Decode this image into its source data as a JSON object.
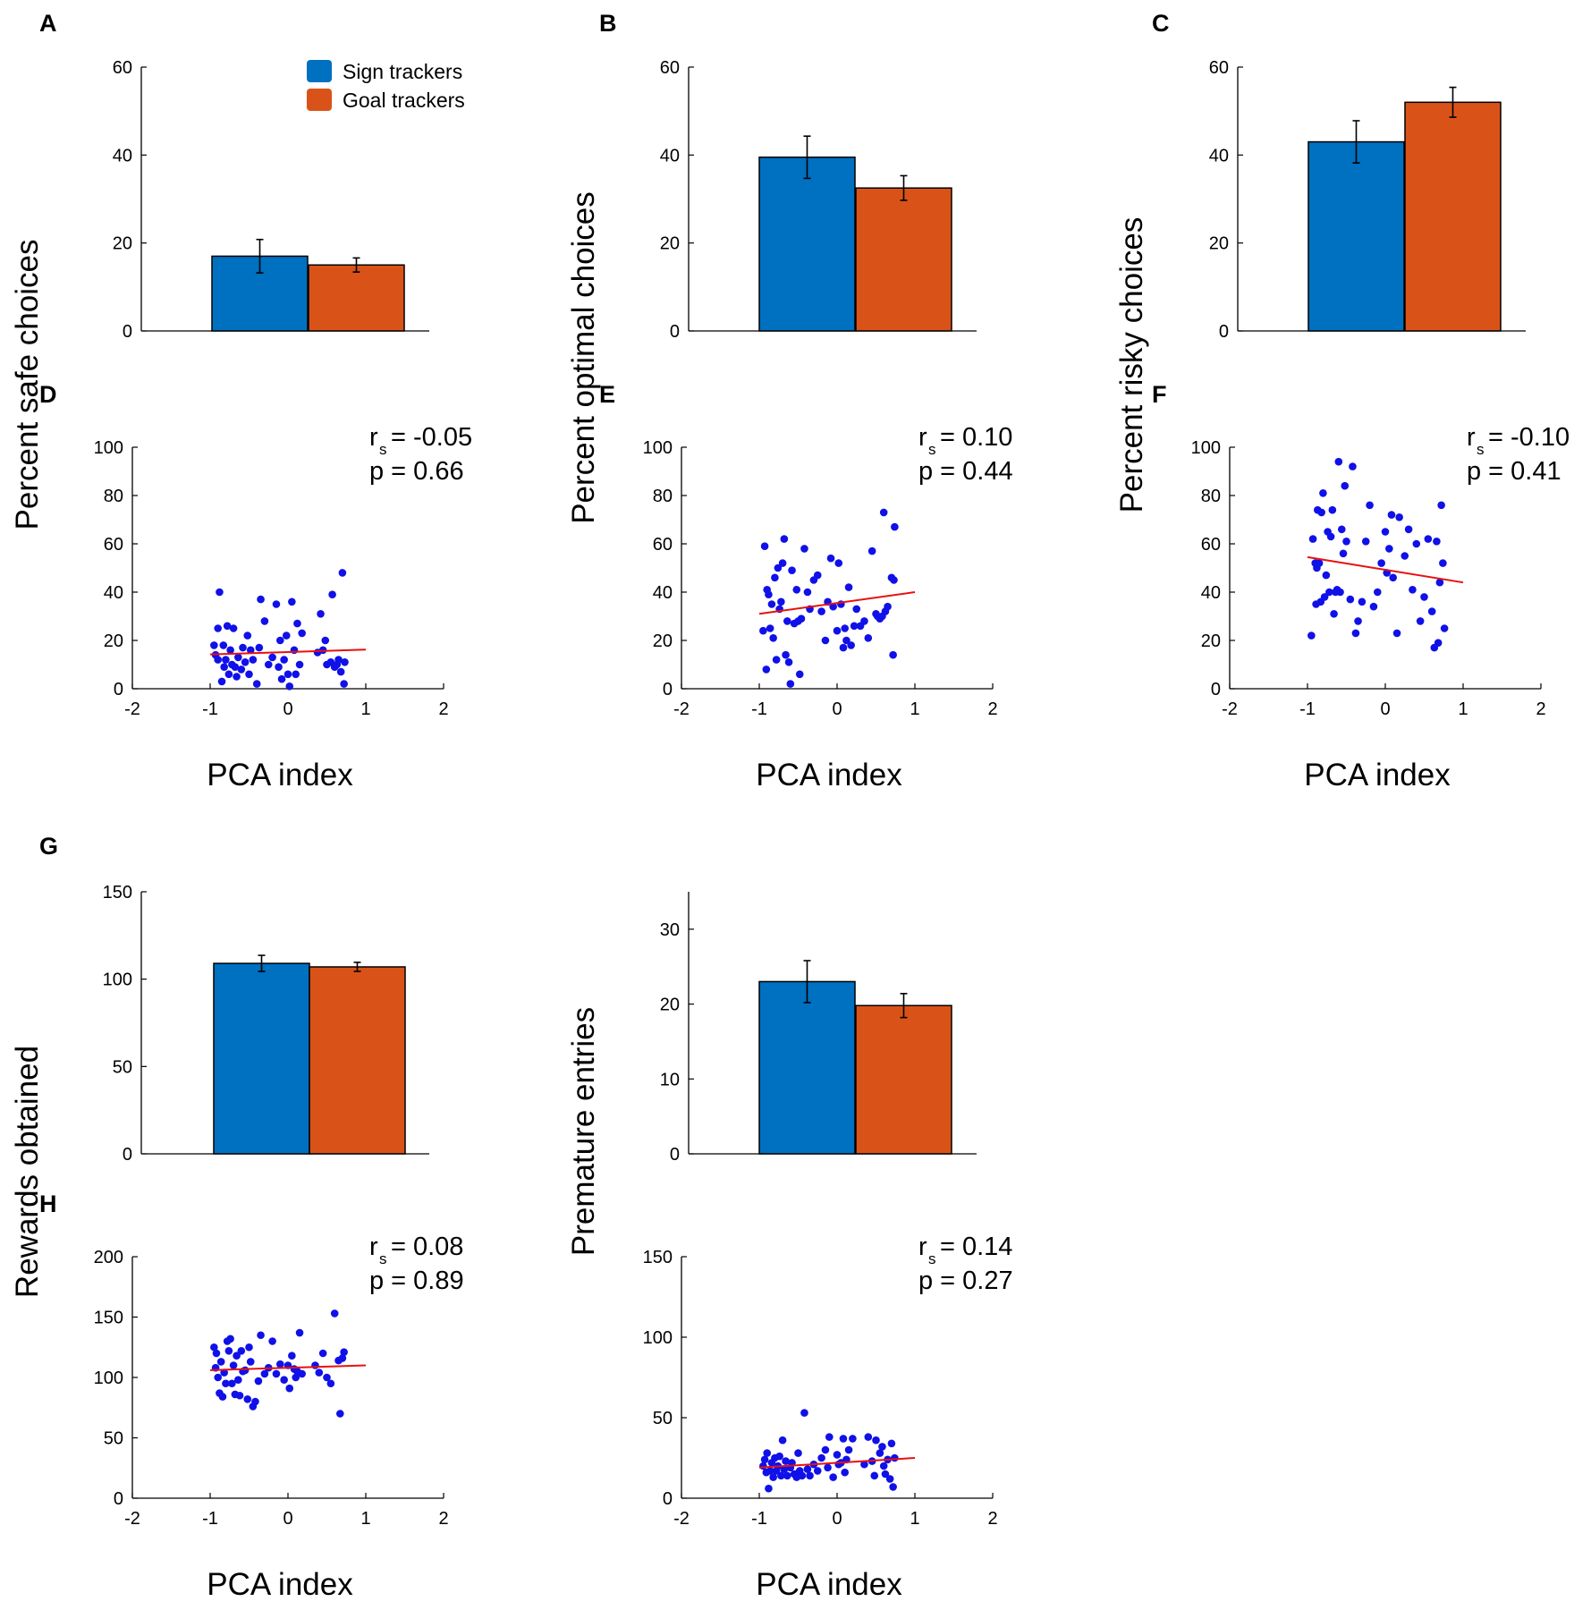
{
  "colors": {
    "sign": "#0070c0",
    "goal": "#d95319",
    "points": "#1010e8",
    "fit": "#e81010"
  },
  "legend": {
    "sign": "Sign trackers",
    "goal": "Goal trackers"
  },
  "chart_data": [
    {
      "id": "A",
      "letter": "A",
      "type": "bar",
      "ylabel": "Percent safe choices",
      "ylim": [
        0,
        60
      ],
      "yticks": [
        "0",
        "20",
        "40",
        "60"
      ],
      "categories": [
        "Sign trackers",
        "Goal trackers"
      ],
      "values": [
        17,
        15
      ],
      "errors": [
        3.8,
        1.6
      ]
    },
    {
      "id": "B",
      "letter": "B",
      "type": "bar",
      "ylabel": "Percent optimal choices",
      "ylim": [
        0,
        60
      ],
      "yticks": [
        "0",
        "20",
        "40",
        "60"
      ],
      "categories": [
        "Sign trackers",
        "Goal trackers"
      ],
      "values": [
        39.5,
        32.5
      ],
      "errors": [
        4.8,
        2.8
      ]
    },
    {
      "id": "C",
      "letter": "C",
      "type": "bar",
      "ylabel": "Percent risky choices",
      "ylim": [
        0,
        60
      ],
      "yticks": [
        "0",
        "20",
        "40",
        "60"
      ],
      "categories": [
        "Sign trackers",
        "Goal trackers"
      ],
      "values": [
        43,
        52
      ],
      "errors": [
        4.8,
        3.4
      ]
    },
    {
      "id": "D",
      "letter": "D",
      "type": "scatter",
      "xlabel": "PCA index",
      "xlim": [
        -2,
        2
      ],
      "xticks": [
        "-2",
        "-1",
        "0",
        "1",
        "2"
      ],
      "ylim": [
        0,
        100
      ],
      "yticks": [
        "0",
        "20",
        "40",
        "60",
        "80",
        "100"
      ],
      "stat_r": "= -0.05",
      "stat_p": "p = 0.66",
      "fit": [
        [
          -1,
          14.2
        ],
        [
          1,
          16.2
        ]
      ],
      "points": [
        [
          -0.95,
          18
        ],
        [
          -0.93,
          14
        ],
        [
          -0.9,
          12
        ],
        [
          -0.9,
          25
        ],
        [
          -0.88,
          40
        ],
        [
          -0.85,
          3
        ],
        [
          -0.83,
          18
        ],
        [
          -0.82,
          9
        ],
        [
          -0.8,
          12
        ],
        [
          -0.78,
          26
        ],
        [
          -0.76,
          6
        ],
        [
          -0.74,
          16
        ],
        [
          -0.72,
          10
        ],
        [
          -0.7,
          25
        ],
        [
          -0.68,
          9
        ],
        [
          -0.66,
          5
        ],
        [
          -0.64,
          13
        ],
        [
          -0.6,
          8
        ],
        [
          -0.58,
          17
        ],
        [
          -0.55,
          11
        ],
        [
          -0.52,
          22
        ],
        [
          -0.5,
          6
        ],
        [
          -0.48,
          16
        ],
        [
          -0.45,
          12
        ],
        [
          -0.4,
          2
        ],
        [
          -0.37,
          17
        ],
        [
          -0.35,
          37
        ],
        [
          -0.3,
          28
        ],
        [
          -0.25,
          10
        ],
        [
          -0.2,
          13
        ],
        [
          -0.15,
          35
        ],
        [
          -0.12,
          9
        ],
        [
          -0.1,
          20
        ],
        [
          -0.08,
          4
        ],
        [
          -0.05,
          12
        ],
        [
          -0.02,
          22
        ],
        [
          0,
          6
        ],
        [
          0.02,
          1
        ],
        [
          0.05,
          36
        ],
        [
          0.08,
          16
        ],
        [
          0.1,
          6
        ],
        [
          0.12,
          27
        ],
        [
          0.15,
          10
        ],
        [
          0.18,
          23
        ],
        [
          0.38,
          15
        ],
        [
          0.42,
          31
        ],
        [
          0.45,
          16
        ],
        [
          0.48,
          20
        ],
        [
          0.5,
          10
        ],
        [
          0.55,
          11
        ],
        [
          0.57,
          39
        ],
        [
          0.6,
          9
        ],
        [
          0.63,
          10
        ],
        [
          0.65,
          12
        ],
        [
          0.68,
          7
        ],
        [
          0.7,
          48
        ],
        [
          0.72,
          2
        ],
        [
          0.73,
          11
        ]
      ]
    },
    {
      "id": "E",
      "letter": "E",
      "type": "scatter",
      "xlabel": "PCA index",
      "xlim": [
        -2,
        2
      ],
      "xticks": [
        "-2",
        "-1",
        "0",
        "1",
        "2"
      ],
      "ylim": [
        0,
        100
      ],
      "yticks": [
        "0",
        "20",
        "40",
        "60",
        "80",
        "100"
      ],
      "stat_r": "= 0.10",
      "stat_p": "p = 0.44",
      "fit": [
        [
          -1,
          31
        ],
        [
          1,
          40
        ]
      ],
      "points": [
        [
          -0.95,
          24
        ],
        [
          -0.93,
          59
        ],
        [
          -0.91,
          8
        ],
        [
          -0.9,
          41
        ],
        [
          -0.88,
          39
        ],
        [
          -0.86,
          25
        ],
        [
          -0.84,
          35
        ],
        [
          -0.82,
          21
        ],
        [
          -0.8,
          46
        ],
        [
          -0.78,
          12
        ],
        [
          -0.76,
          50
        ],
        [
          -0.74,
          33
        ],
        [
          -0.72,
          36
        ],
        [
          -0.7,
          52
        ],
        [
          -0.68,
          62
        ],
        [
          -0.66,
          14
        ],
        [
          -0.64,
          28
        ],
        [
          -0.62,
          11
        ],
        [
          -0.6,
          2
        ],
        [
          -0.58,
          49
        ],
        [
          -0.55,
          27
        ],
        [
          -0.52,
          41
        ],
        [
          -0.5,
          28
        ],
        [
          -0.48,
          6
        ],
        [
          -0.46,
          29
        ],
        [
          -0.42,
          58
        ],
        [
          -0.38,
          40
        ],
        [
          -0.35,
          33
        ],
        [
          -0.3,
          45
        ],
        [
          -0.25,
          47
        ],
        [
          -0.2,
          32
        ],
        [
          -0.15,
          20
        ],
        [
          -0.12,
          36
        ],
        [
          -0.08,
          54
        ],
        [
          -0.05,
          34
        ],
        [
          0,
          24
        ],
        [
          0.02,
          52
        ],
        [
          0.05,
          35
        ],
        [
          0.08,
          17
        ],
        [
          0.1,
          25
        ],
        [
          0.12,
          20
        ],
        [
          0.15,
          42
        ],
        [
          0.18,
          18
        ],
        [
          0.22,
          26
        ],
        [
          0.25,
          33
        ],
        [
          0.3,
          26
        ],
        [
          0.35,
          28
        ],
        [
          0.4,
          21
        ],
        [
          0.45,
          57
        ],
        [
          0.5,
          31
        ],
        [
          0.52,
          30
        ],
        [
          0.55,
          29
        ],
        [
          0.58,
          30
        ],
        [
          0.6,
          73
        ],
        [
          0.62,
          32
        ],
        [
          0.65,
          34
        ],
        [
          0.7,
          46
        ],
        [
          0.72,
          14
        ],
        [
          0.73,
          45
        ],
        [
          0.74,
          67
        ]
      ]
    },
    {
      "id": "F",
      "letter": "F",
      "type": "scatter",
      "xlabel": "PCA index",
      "xlim": [
        -2,
        2
      ],
      "xticks": [
        "-2",
        "-1",
        "0",
        "1",
        "2"
      ],
      "ylim": [
        0,
        100
      ],
      "yticks": [
        "0",
        "20",
        "40",
        "60",
        "80",
        "100"
      ],
      "stat_r": "= -0.10",
      "stat_p": "p = 0.41",
      "fit": [
        [
          -1,
          54.5
        ],
        [
          1,
          44
        ]
      ],
      "points": [
        [
          -0.95,
          22
        ],
        [
          -0.93,
          62
        ],
        [
          -0.9,
          52
        ],
        [
          -0.89,
          35
        ],
        [
          -0.88,
          50
        ],
        [
          -0.87,
          74
        ],
        [
          -0.85,
          52
        ],
        [
          -0.83,
          36
        ],
        [
          -0.82,
          73
        ],
        [
          -0.8,
          81
        ],
        [
          -0.78,
          38
        ],
        [
          -0.76,
          47
        ],
        [
          -0.74,
          65
        ],
        [
          -0.72,
          40
        ],
        [
          -0.7,
          63
        ],
        [
          -0.68,
          74
        ],
        [
          -0.66,
          31
        ],
        [
          -0.64,
          40
        ],
        [
          -0.62,
          41
        ],
        [
          -0.6,
          94
        ],
        [
          -0.58,
          40
        ],
        [
          -0.56,
          66
        ],
        [
          -0.54,
          56
        ],
        [
          -0.52,
          84
        ],
        [
          -0.5,
          61
        ],
        [
          -0.45,
          37
        ],
        [
          -0.42,
          92
        ],
        [
          -0.38,
          23
        ],
        [
          -0.35,
          28
        ],
        [
          -0.3,
          36
        ],
        [
          -0.25,
          61
        ],
        [
          -0.2,
          76
        ],
        [
          -0.15,
          34
        ],
        [
          -0.1,
          40
        ],
        [
          -0.05,
          52
        ],
        [
          0,
          65
        ],
        [
          0.02,
          48
        ],
        [
          0.05,
          58
        ],
        [
          0.08,
          72
        ],
        [
          0.1,
          46
        ],
        [
          0.15,
          23
        ],
        [
          0.18,
          71
        ],
        [
          0.25,
          55
        ],
        [
          0.3,
          66
        ],
        [
          0.35,
          41
        ],
        [
          0.4,
          60
        ],
        [
          0.45,
          28
        ],
        [
          0.5,
          38
        ],
        [
          0.55,
          62
        ],
        [
          0.6,
          32
        ],
        [
          0.63,
          17
        ],
        [
          0.66,
          61
        ],
        [
          0.68,
          19
        ],
        [
          0.7,
          44
        ],
        [
          0.72,
          76
        ],
        [
          0.74,
          52
        ],
        [
          0.76,
          25
        ]
      ]
    },
    {
      "id": "G",
      "letter": "G",
      "type": "bar",
      "ylabel": "Rewards obtained",
      "ylim": [
        0,
        150
      ],
      "yticks": [
        "0",
        "50",
        "100",
        "150"
      ],
      "categories": [
        "Sign trackers",
        "Goal trackers"
      ],
      "values": [
        109,
        107
      ],
      "errors": [
        4.6,
        2.6
      ]
    },
    {
      "id": "G2",
      "letter": "",
      "type": "bar",
      "ylabel": "Premature entries",
      "ylim": [
        0,
        35
      ],
      "yticks": [
        "0",
        "10",
        "20",
        "30"
      ],
      "categories": [
        "Sign trackers",
        "Goal trackers"
      ],
      "values": [
        23,
        19.8
      ],
      "errors": [
        2.8,
        1.6
      ]
    },
    {
      "id": "H",
      "letter": "H",
      "type": "scatter",
      "xlabel": "PCA index",
      "xlim": [
        -2,
        2
      ],
      "xticks": [
        "-2",
        "-1",
        "0",
        "1",
        "2"
      ],
      "ylim": [
        0,
        200
      ],
      "yticks": [
        "0",
        "50",
        "100",
        "150",
        "200"
      ],
      "stat_r": "= 0.08",
      "stat_p": "p = 0.89",
      "fit": [
        [
          -1,
          106
        ],
        [
          1,
          110
        ]
      ],
      "points": [
        [
          -0.95,
          125
        ],
        [
          -0.93,
          108
        ],
        [
          -0.92,
          120
        ],
        [
          -0.9,
          100
        ],
        [
          -0.88,
          87
        ],
        [
          -0.86,
          113
        ],
        [
          -0.84,
          84
        ],
        [
          -0.82,
          104
        ],
        [
          -0.8,
          95
        ],
        [
          -0.78,
          130
        ],
        [
          -0.76,
          122
        ],
        [
          -0.74,
          132
        ],
        [
          -0.72,
          95
        ],
        [
          -0.7,
          110
        ],
        [
          -0.68,
          86
        ],
        [
          -0.66,
          118
        ],
        [
          -0.64,
          98
        ],
        [
          -0.62,
          85
        ],
        [
          -0.6,
          122
        ],
        [
          -0.58,
          105
        ],
        [
          -0.55,
          106
        ],
        [
          -0.52,
          82
        ],
        [
          -0.5,
          125
        ],
        [
          -0.48,
          113
        ],
        [
          -0.45,
          76
        ],
        [
          -0.42,
          80
        ],
        [
          -0.38,
          97
        ],
        [
          -0.35,
          135
        ],
        [
          -0.3,
          103
        ],
        [
          -0.25,
          108
        ],
        [
          -0.2,
          130
        ],
        [
          -0.15,
          103
        ],
        [
          -0.1,
          111
        ],
        [
          -0.05,
          98
        ],
        [
          0,
          110
        ],
        [
          0.02,
          91
        ],
        [
          0.05,
          118
        ],
        [
          0.08,
          107
        ],
        [
          0.1,
          100
        ],
        [
          0.12,
          105
        ],
        [
          0.15,
          137
        ],
        [
          0.18,
          103
        ],
        [
          0.35,
          110
        ],
        [
          0.4,
          104
        ],
        [
          0.45,
          120
        ],
        [
          0.5,
          100
        ],
        [
          0.55,
          95
        ],
        [
          0.6,
          153
        ],
        [
          0.65,
          114
        ],
        [
          0.67,
          70
        ],
        [
          0.7,
          116
        ],
        [
          0.72,
          121
        ]
      ]
    },
    {
      "id": "I",
      "letter": "",
      "type": "scatter",
      "xlabel": "PCA index",
      "xlim": [
        -2,
        2
      ],
      "xticks": [
        "-2",
        "-1",
        "0",
        "1",
        "2"
      ],
      "ylim": [
        0,
        150
      ],
      "yticks": [
        "0",
        "50",
        "100",
        "150"
      ],
      "stat_r": "= 0.14",
      "stat_p": "p = 0.27",
      "fit": [
        [
          -1,
          19
        ],
        [
          1,
          25
        ]
      ],
      "points": [
        [
          -0.95,
          20
        ],
        [
          -0.93,
          24
        ],
        [
          -0.91,
          16
        ],
        [
          -0.9,
          28
        ],
        [
          -0.88,
          6
        ],
        [
          -0.86,
          17
        ],
        [
          -0.84,
          22
        ],
        [
          -0.82,
          13
        ],
        [
          -0.8,
          25
        ],
        [
          -0.78,
          17
        ],
        [
          -0.76,
          20
        ],
        [
          -0.74,
          26
        ],
        [
          -0.72,
          14
        ],
        [
          -0.7,
          36
        ],
        [
          -0.68,
          18
        ],
        [
          -0.66,
          23
        ],
        [
          -0.64,
          14
        ],
        [
          -0.6,
          19
        ],
        [
          -0.58,
          22
        ],
        [
          -0.55,
          15
        ],
        [
          -0.52,
          13
        ],
        [
          -0.5,
          28
        ],
        [
          -0.48,
          17
        ],
        [
          -0.45,
          14
        ],
        [
          -0.42,
          53
        ],
        [
          -0.38,
          18
        ],
        [
          -0.35,
          14
        ],
        [
          -0.3,
          21
        ],
        [
          -0.25,
          17
        ],
        [
          -0.2,
          25
        ],
        [
          -0.15,
          30
        ],
        [
          -0.12,
          19
        ],
        [
          -0.1,
          38
        ],
        [
          -0.05,
          13
        ],
        [
          0,
          27
        ],
        [
          0.02,
          21
        ],
        [
          0.05,
          22
        ],
        [
          0.08,
          37
        ],
        [
          0.1,
          16
        ],
        [
          0.12,
          24
        ],
        [
          0.15,
          30
        ],
        [
          0.2,
          37
        ],
        [
          0.35,
          21
        ],
        [
          0.4,
          38
        ],
        [
          0.45,
          23
        ],
        [
          0.48,
          14
        ],
        [
          0.5,
          36
        ],
        [
          0.55,
          28
        ],
        [
          0.58,
          32
        ],
        [
          0.6,
          20
        ],
        [
          0.62,
          15
        ],
        [
          0.65,
          24
        ],
        [
          0.68,
          12
        ],
        [
          0.7,
          34
        ],
        [
          0.72,
          7
        ],
        [
          0.74,
          25
        ]
      ]
    }
  ]
}
